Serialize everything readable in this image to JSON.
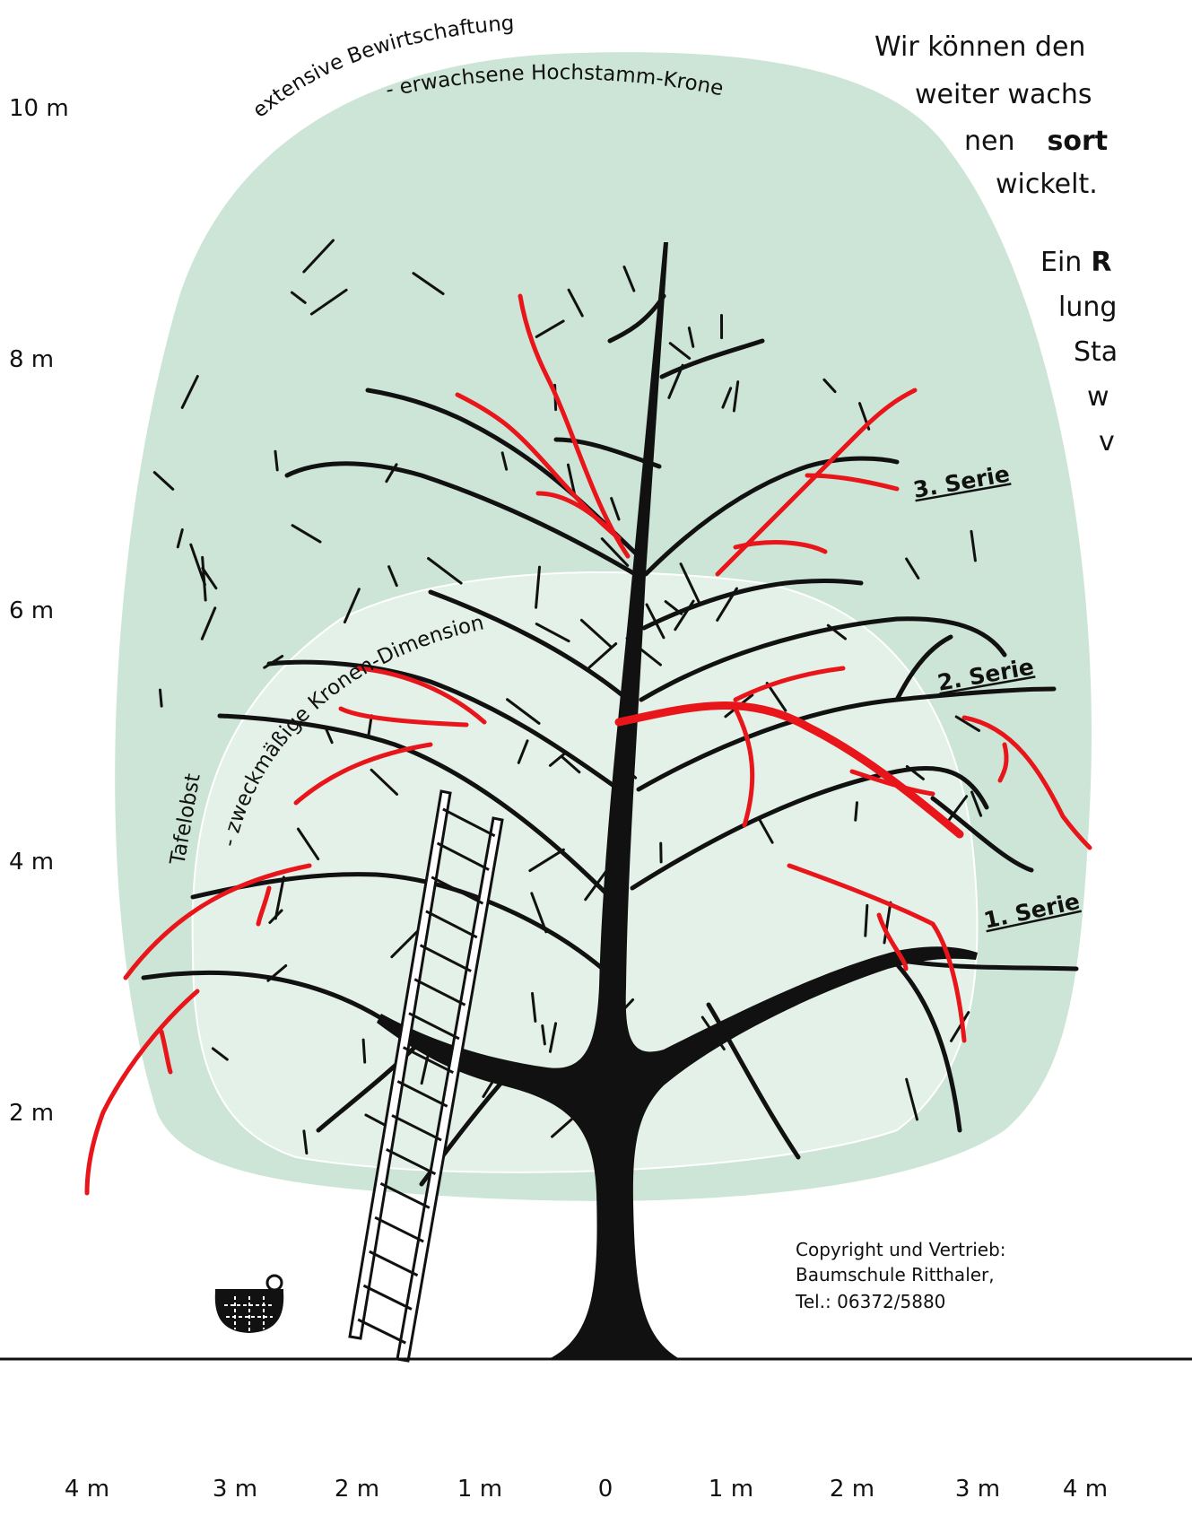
{
  "y_axis": {
    "labels": [
      "10 m",
      "8 m",
      "6 m",
      "4 m",
      "2 m"
    ]
  },
  "x_axis": {
    "labels": [
      "4 m",
      "3 m",
      "2 m",
      "1 m",
      "0",
      "1 m",
      "2 m",
      "3 m",
      "4 m"
    ]
  },
  "crown_labels": {
    "outer_line1": "extensive Bewirtschaftung",
    "outer_line2": "- erwachsene Hochstamm-Krone",
    "inner_line1": "Tafelobst",
    "inner_line2": "- zweckmäßige Kronen-Dimension"
  },
  "series_labels": [
    "3. Serie",
    "2. Serie",
    "1. Serie"
  ],
  "side_text": [
    {
      "text": "Wir können den"
    },
    {
      "text": "weiter wachs"
    },
    {
      "text": "nen",
      "bold": "sort"
    },
    {
      "text": "wickelt."
    },
    {
      "text": "Ein",
      "bold": "R"
    },
    {
      "text": "lung"
    },
    {
      "text": "Sta"
    },
    {
      "text": "w"
    },
    {
      "text": "v"
    }
  ],
  "copyright": [
    "Copyright und Vertrieb:",
    "Baumschule Ritthaler,",
    "Tel.: 06372/5880"
  ]
}
